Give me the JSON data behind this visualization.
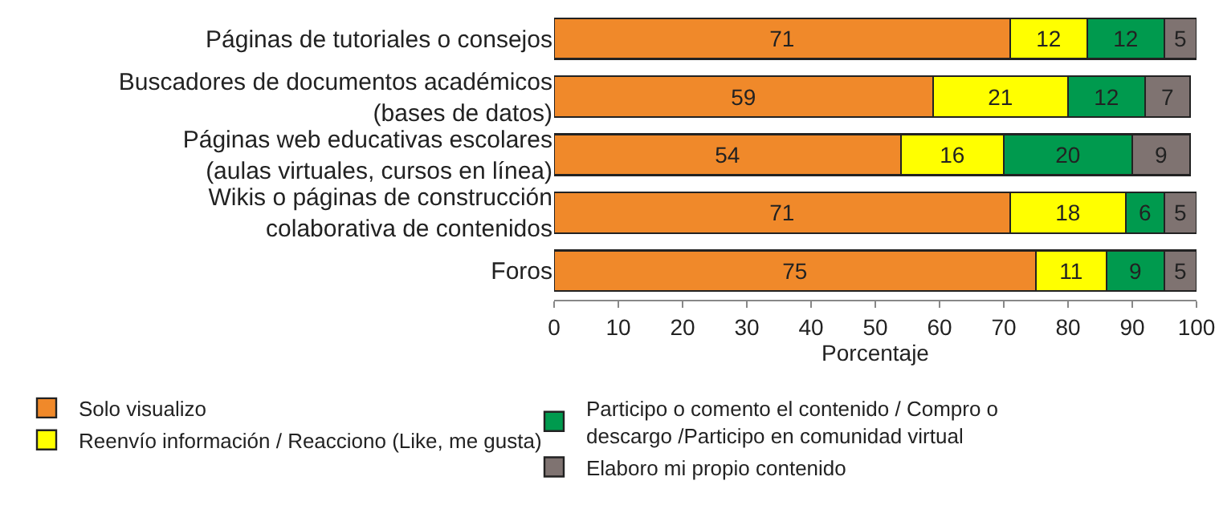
{
  "chart_data": {
    "type": "bar",
    "orientation": "horizontal",
    "stacked": true,
    "xlabel": "Porcentaje",
    "categories": [
      "Páginas de tutoriales o consejos",
      "Buscadores de documentos académicos (bases de datos)",
      "Páginas web educativas escolares (aulas virtuales, cursos en línea)",
      "Wikis o páginas de construcción colaborativa de contenidos",
      "Foros"
    ],
    "series": [
      {
        "name": "Solo visualizo",
        "color": "#f0892a",
        "values": [
          71,
          59,
          54,
          71,
          75
        ]
      },
      {
        "name": "Reenvío información / Reacciono (Like, me gusta)",
        "color": "#ffff00",
        "values": [
          12,
          21,
          16,
          18,
          11
        ]
      },
      {
        "name": "Participo o comento el contenido / Compro o descargo /Participo en comunidad virtual",
        "color": "#009a4e",
        "values": [
          12,
          12,
          20,
          6,
          9
        ]
      },
      {
        "name": "Elaboro mi propio contenido",
        "color": "#7f7371",
        "values": [
          5,
          7,
          9,
          5,
          5
        ]
      }
    ],
    "xlim": [
      0,
      100
    ],
    "xticks": [
      0,
      10,
      20,
      30,
      40,
      50,
      60,
      70,
      80,
      90,
      100
    ],
    "data_labels": true,
    "grid": false,
    "legend": "bottom"
  }
}
